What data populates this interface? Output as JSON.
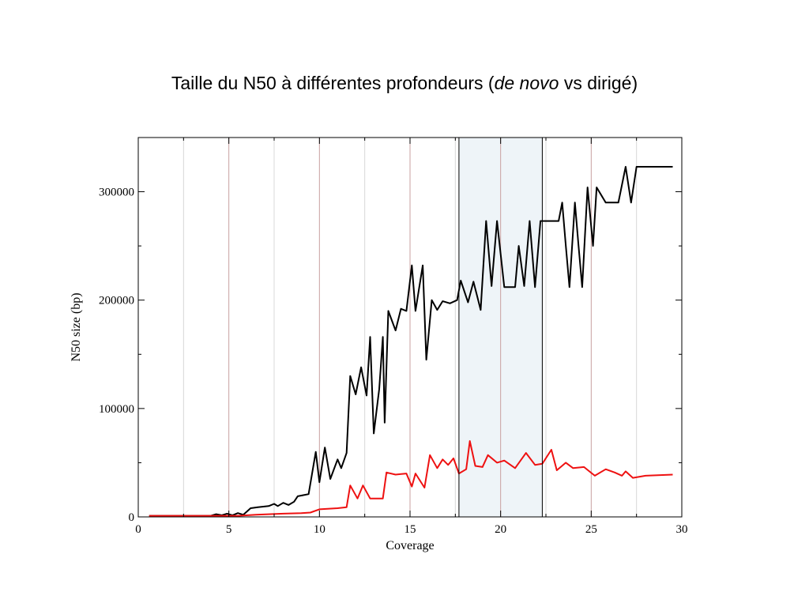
{
  "slide": {
    "title_before": "Taille du N50 à différentes profondeurs (",
    "title_italic": "de novo",
    "title_after": " vs dirigé)"
  },
  "chart_data": {
    "type": "line",
    "title": "Taille du N50 à différentes profondeurs (de novo vs dirigé)",
    "xlabel": "Coverage",
    "ylabel": "N50 size (bp)",
    "xlim": [
      0,
      30
    ],
    "ylim": [
      0,
      350000
    ],
    "x_ticks": [
      0,
      5,
      10,
      15,
      20,
      25,
      30
    ],
    "x_tick_labels": [
      "0",
      "5",
      "10",
      "15",
      "20",
      "25",
      "30"
    ],
    "y_ticks": [
      0,
      100000,
      200000,
      300000
    ],
    "y_tick_labels": [
      "0",
      "100000",
      "200000",
      "300000"
    ],
    "highlight_range": {
      "x": [
        17.7,
        22.3
      ],
      "color": "#eef4f8"
    },
    "colors": {
      "black_series": "#000000",
      "red_series": "#ee1111",
      "grid_major": "#c8a0a0",
      "grid_minor": "#d8d8d8"
    },
    "series": [
      {
        "name": "black",
        "color": "#000000",
        "points": [
          [
            0.6,
            1000
          ],
          [
            4,
            1000
          ],
          [
            4.3,
            2500
          ],
          [
            4.6,
            1500
          ],
          [
            4.9,
            3000
          ],
          [
            5.2,
            1500
          ],
          [
            5.5,
            3500
          ],
          [
            5.8,
            2000
          ],
          [
            6.2,
            8000
          ],
          [
            6.6,
            9000
          ],
          [
            7.2,
            10000
          ],
          [
            7.5,
            12000
          ],
          [
            7.7,
            10000
          ],
          [
            8,
            13000
          ],
          [
            8.3,
            11000
          ],
          [
            8.6,
            14000
          ],
          [
            8.8,
            19000
          ],
          [
            9.4,
            21000
          ],
          [
            9.8,
            60000
          ],
          [
            10,
            32000
          ],
          [
            10.3,
            64000
          ],
          [
            10.6,
            35000
          ],
          [
            11,
            53000
          ],
          [
            11.2,
            45000
          ],
          [
            11.5,
            59000
          ],
          [
            11.7,
            130000
          ],
          [
            12,
            113000
          ],
          [
            12.3,
            138000
          ],
          [
            12.6,
            112000
          ],
          [
            12.8,
            166000
          ],
          [
            13,
            77000
          ],
          [
            13.3,
            118000
          ],
          [
            13.5,
            166000
          ],
          [
            13.6,
            87000
          ],
          [
            13.8,
            190000
          ],
          [
            14.2,
            172000
          ],
          [
            14.5,
            192000
          ],
          [
            14.8,
            190000
          ],
          [
            15.1,
            232000
          ],
          [
            15.3,
            190000
          ],
          [
            15.7,
            232000
          ],
          [
            15.9,
            145000
          ],
          [
            16.2,
            200000
          ],
          [
            16.5,
            191000
          ],
          [
            16.8,
            199000
          ],
          [
            17.2,
            197000
          ],
          [
            17.6,
            200000
          ],
          [
            17.8,
            218000
          ],
          [
            18.2,
            198000
          ],
          [
            18.5,
            217000
          ],
          [
            18.9,
            191000
          ],
          [
            19.2,
            273000
          ],
          [
            19.5,
            213000
          ],
          [
            19.8,
            273000
          ],
          [
            20.2,
            212000
          ],
          [
            20.8,
            212000
          ],
          [
            21,
            250000
          ],
          [
            21.3,
            213000
          ],
          [
            21.6,
            273000
          ],
          [
            21.9,
            212000
          ],
          [
            22.2,
            273000
          ],
          [
            23.2,
            273000
          ],
          [
            23.4,
            290000
          ],
          [
            23.6,
            250000
          ],
          [
            23.8,
            212000
          ],
          [
            24.1,
            290000
          ],
          [
            24.3,
            250000
          ],
          [
            24.5,
            212000
          ],
          [
            24.8,
            304000
          ],
          [
            25.1,
            250000
          ],
          [
            25.3,
            304000
          ],
          [
            25.8,
            290000
          ],
          [
            26.5,
            290000
          ],
          [
            26.9,
            323000
          ],
          [
            27.2,
            290000
          ],
          [
            27.5,
            323000
          ],
          [
            29.5,
            323000
          ]
        ]
      },
      {
        "name": "red",
        "color": "#ee1111",
        "points": [
          [
            0.6,
            1000
          ],
          [
            5.5,
            1000
          ],
          [
            6.5,
            2000
          ],
          [
            8,
            3000
          ],
          [
            9,
            3500
          ],
          [
            9.5,
            4000
          ],
          [
            10,
            7000
          ],
          [
            11,
            8000
          ],
          [
            11.5,
            9000
          ],
          [
            11.7,
            29000
          ],
          [
            12.1,
            17000
          ],
          [
            12.4,
            29000
          ],
          [
            12.8,
            17000
          ],
          [
            13.5,
            17000
          ],
          [
            13.7,
            41000
          ],
          [
            14.2,
            39000
          ],
          [
            14.8,
            40000
          ],
          [
            15.1,
            28000
          ],
          [
            15.3,
            40000
          ],
          [
            15.8,
            27000
          ],
          [
            16.1,
            57000
          ],
          [
            16.5,
            45000
          ],
          [
            16.8,
            53000
          ],
          [
            17.1,
            48000
          ],
          [
            17.4,
            54000
          ],
          [
            17.7,
            40000
          ],
          [
            18.1,
            44000
          ],
          [
            18.3,
            70000
          ],
          [
            18.6,
            47000
          ],
          [
            19,
            46000
          ],
          [
            19.3,
            57000
          ],
          [
            19.8,
            50000
          ],
          [
            20.2,
            52000
          ],
          [
            20.8,
            45000
          ],
          [
            21.4,
            59000
          ],
          [
            21.9,
            48000
          ],
          [
            22.3,
            49000
          ],
          [
            22.8,
            62000
          ],
          [
            23.1,
            43000
          ],
          [
            23.6,
            50000
          ],
          [
            24,
            45000
          ],
          [
            24.6,
            46000
          ],
          [
            24.9,
            42000
          ],
          [
            25.2,
            38000
          ],
          [
            25.8,
            44000
          ],
          [
            26.3,
            41000
          ],
          [
            26.7,
            38000
          ],
          [
            26.9,
            42000
          ],
          [
            27.3,
            36000
          ],
          [
            28,
            38000
          ],
          [
            29.5,
            39000
          ]
        ]
      }
    ]
  }
}
